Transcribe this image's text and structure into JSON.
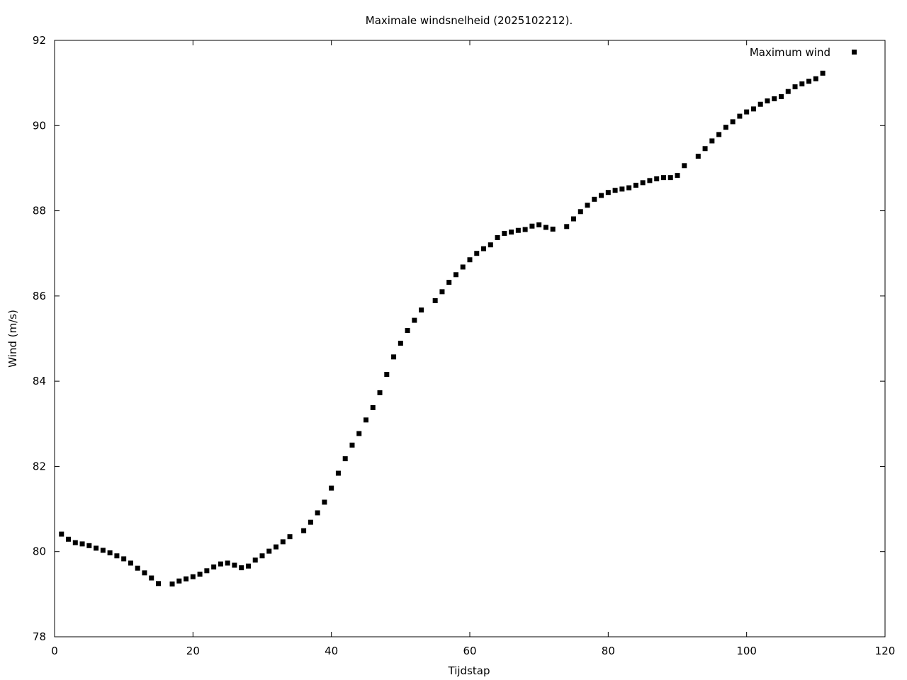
{
  "chart_data": {
    "type": "scatter",
    "title": "Maximale windsnelheid (2025102212).",
    "xlabel": "Tijdstap",
    "ylabel": "Wind (m/s)",
    "xlim": [
      0,
      120
    ],
    "ylim": [
      78,
      92
    ],
    "x_ticks": [
      0,
      20,
      40,
      60,
      80,
      100,
      120
    ],
    "y_ticks": [
      78,
      80,
      82,
      84,
      86,
      88,
      90,
      92
    ],
    "grid": false,
    "legend_position": "top-right",
    "series": [
      {
        "name": "Maximum wind",
        "color": "#000000",
        "marker": "square",
        "points": [
          [
            1,
            80.41
          ],
          [
            2,
            80.29
          ],
          [
            3,
            80.21
          ],
          [
            4,
            80.18
          ],
          [
            5,
            80.14
          ],
          [
            6,
            80.08
          ],
          [
            7,
            80.03
          ],
          [
            8,
            79.97
          ],
          [
            9,
            79.9
          ],
          [
            10,
            79.83
          ],
          [
            11,
            79.73
          ],
          [
            12,
            79.61
          ],
          [
            13,
            79.5
          ],
          [
            14,
            79.38
          ],
          [
            15,
            79.25
          ],
          [
            17,
            79.24
          ],
          [
            18,
            79.31
          ],
          [
            19,
            79.36
          ],
          [
            20,
            79.41
          ],
          [
            21,
            79.47
          ],
          [
            22,
            79.55
          ],
          [
            23,
            79.64
          ],
          [
            24,
            79.71
          ],
          [
            25,
            79.73
          ],
          [
            26,
            79.68
          ],
          [
            27,
            79.62
          ],
          [
            28,
            79.66
          ],
          [
            29,
            79.8
          ],
          [
            30,
            79.9
          ],
          [
            31,
            80.01
          ],
          [
            32,
            80.11
          ],
          [
            33,
            80.23
          ],
          [
            34,
            80.35
          ],
          [
            36,
            80.49
          ],
          [
            37,
            80.69
          ],
          [
            38,
            80.91
          ],
          [
            39,
            81.16
          ],
          [
            40,
            81.49
          ],
          [
            41,
            81.84
          ],
          [
            42,
            82.18
          ],
          [
            43,
            82.5
          ],
          [
            44,
            82.77
          ],
          [
            45,
            83.09
          ],
          [
            46,
            83.38
          ],
          [
            47,
            83.73
          ],
          [
            48,
            84.16
          ],
          [
            49,
            84.57
          ],
          [
            50,
            84.89
          ],
          [
            51,
            85.19
          ],
          [
            52,
            85.43
          ],
          [
            53,
            85.67
          ],
          [
            55,
            85.89
          ],
          [
            56,
            86.1
          ],
          [
            57,
            86.32
          ],
          [
            58,
            86.5
          ],
          [
            59,
            86.68
          ],
          [
            60,
            86.85
          ],
          [
            61,
            87.0
          ],
          [
            62,
            87.11
          ],
          [
            63,
            87.2
          ],
          [
            64,
            87.37
          ],
          [
            65,
            87.47
          ],
          [
            66,
            87.5
          ],
          [
            67,
            87.54
          ],
          [
            68,
            87.56
          ],
          [
            69,
            87.64
          ],
          [
            70,
            87.67
          ],
          [
            71,
            87.61
          ],
          [
            72,
            87.57
          ],
          [
            74,
            87.63
          ],
          [
            75,
            87.81
          ],
          [
            76,
            87.98
          ],
          [
            77,
            88.13
          ],
          [
            78,
            88.27
          ],
          [
            79,
            88.36
          ],
          [
            80,
            88.43
          ],
          [
            81,
            88.48
          ],
          [
            82,
            88.51
          ],
          [
            83,
            88.54
          ],
          [
            84,
            88.6
          ],
          [
            85,
            88.66
          ],
          [
            86,
            88.71
          ],
          [
            87,
            88.75
          ],
          [
            88,
            88.78
          ],
          [
            89,
            88.78
          ],
          [
            90,
            88.83
          ],
          [
            91,
            89.06
          ],
          [
            93,
            89.28
          ],
          [
            94,
            89.46
          ],
          [
            95,
            89.64
          ],
          [
            96,
            89.79
          ],
          [
            97,
            89.96
          ],
          [
            98,
            90.09
          ],
          [
            99,
            90.22
          ],
          [
            100,
            90.32
          ],
          [
            101,
            90.39
          ],
          [
            102,
            90.5
          ],
          [
            103,
            90.58
          ],
          [
            104,
            90.63
          ],
          [
            105,
            90.68
          ],
          [
            106,
            90.8
          ],
          [
            107,
            90.91
          ],
          [
            108,
            90.98
          ],
          [
            109,
            91.04
          ],
          [
            110,
            91.1
          ],
          [
            111,
            91.23
          ]
        ]
      }
    ]
  }
}
